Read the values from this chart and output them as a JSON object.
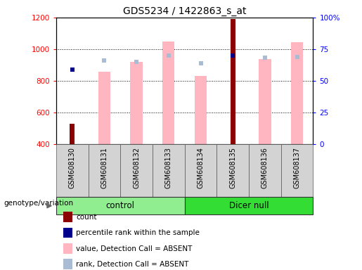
{
  "title": "GDS5234 / 1422863_s_at",
  "samples": [
    "GSM608130",
    "GSM608131",
    "GSM608132",
    "GSM608133",
    "GSM608134",
    "GSM608135",
    "GSM608136",
    "GSM608137"
  ],
  "count_values": [
    530,
    null,
    null,
    null,
    null,
    1190,
    null,
    null
  ],
  "rank_values": [
    870,
    null,
    null,
    null,
    null,
    960,
    null,
    null
  ],
  "pink_bar_top": [
    null,
    860,
    920,
    1050,
    830,
    null,
    940,
    1045
  ],
  "light_blue_val": [
    null,
    930,
    920,
    960,
    910,
    null,
    945,
    950
  ],
  "ylim_left": [
    400,
    1200
  ],
  "ylim_right": [
    0,
    100
  ],
  "y_ticks_left": [
    400,
    600,
    800,
    1000,
    1200
  ],
  "y_ticks_right": [
    0,
    25,
    50,
    75,
    100
  ],
  "y_tick_labels_right": [
    "0",
    "25",
    "50",
    "75",
    "100%"
  ],
  "color_count": "#8B0000",
  "color_rank": "#00008B",
  "color_pink_bar": "#FFB6C1",
  "color_light_blue": "#AABBD4",
  "color_group_control": "#90EE90",
  "color_group_dicer": "#33DD33",
  "legend_labels": [
    "count",
    "percentile rank within the sample",
    "value, Detection Call = ABSENT",
    "rank, Detection Call = ABSENT"
  ],
  "legend_colors": [
    "#8B0000",
    "#00008B",
    "#FFB6C1",
    "#AABBD4"
  ]
}
